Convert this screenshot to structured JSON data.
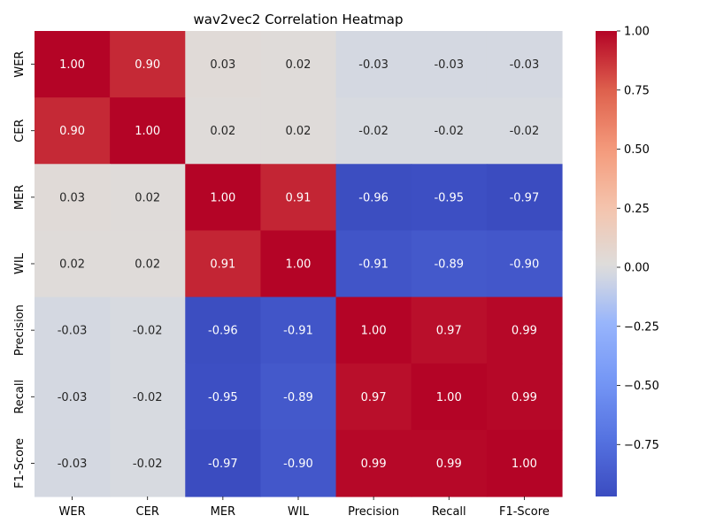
{
  "chart_data": {
    "type": "heatmap",
    "title": "wav2vec2 Correlation Heatmap",
    "xlabel": "",
    "ylabel": "",
    "x_labels": [
      "WER",
      "CER",
      "MER",
      "WIL",
      "Precision",
      "Recall",
      "F1-Score"
    ],
    "y_labels": [
      "WER",
      "CER",
      "MER",
      "WIL",
      "Precision",
      "Recall",
      "F1-Score"
    ],
    "values": [
      [
        1.0,
        0.9,
        0.03,
        0.02,
        -0.03,
        -0.03,
        -0.03
      ],
      [
        0.9,
        1.0,
        0.02,
        0.02,
        -0.02,
        -0.02,
        -0.02
      ],
      [
        0.03,
        0.02,
        1.0,
        0.91,
        -0.96,
        -0.95,
        -0.97
      ],
      [
        0.02,
        0.02,
        0.91,
        1.0,
        -0.91,
        -0.89,
        -0.9
      ],
      [
        -0.03,
        -0.02,
        -0.96,
        -0.91,
        1.0,
        0.97,
        0.99
      ],
      [
        -0.03,
        -0.02,
        -0.95,
        -0.89,
        0.97,
        1.0,
        0.99
      ],
      [
        -0.03,
        -0.02,
        -0.97,
        -0.9,
        0.99,
        0.99,
        1.0
      ]
    ],
    "colormap": "coolwarm",
    "vmin": -0.97,
    "vmax": 1.0,
    "annotation_format": "0.00",
    "colorbar": {
      "ticks": [
        1.0,
        0.75,
        0.5,
        0.25,
        0.0,
        -0.25,
        -0.5,
        -0.75
      ],
      "tick_labels": [
        "1.00",
        "0.75",
        "0.50",
        "0.25",
        "0.00",
        "−0.25",
        "−0.50",
        "−0.75"
      ]
    }
  }
}
